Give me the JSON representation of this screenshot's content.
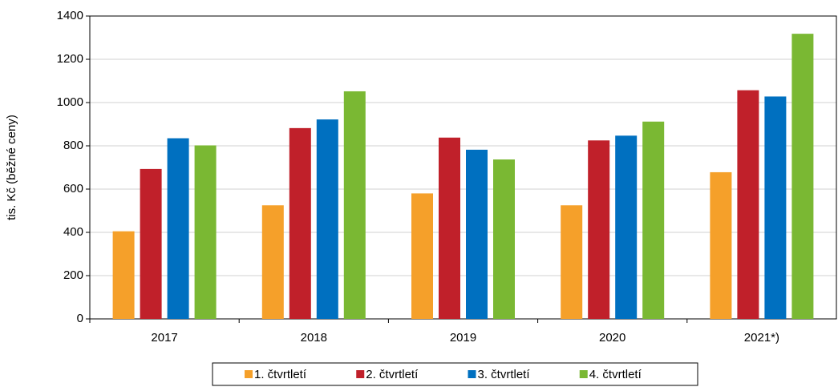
{
  "chart_data": {
    "type": "bar",
    "y_label": "tis. Kč (běžné ceny)",
    "categories": [
      "2017",
      "2018",
      "2019",
      "2020",
      "2021*)"
    ],
    "series": [
      {
        "name": "1. čtvrtletí",
        "color": "#f5a02a",
        "values": [
          405,
          525,
          580,
          525,
          678
        ]
      },
      {
        "name": "2. čtvrtletí",
        "color": "#c0202a",
        "values": [
          693,
          882,
          838,
          825,
          1057
        ]
      },
      {
        "name": "3. čtvrtletí",
        "color": "#0070c0",
        "values": [
          835,
          922,
          782,
          847,
          1028
        ]
      },
      {
        "name": "4. čtvrtletí",
        "color": "#7ab833",
        "values": [
          802,
          1052,
          737,
          912,
          1318
        ]
      }
    ],
    "ylim": [
      0,
      1400
    ],
    "yticks": [
      0,
      200,
      400,
      600,
      800,
      1000,
      1200,
      1400
    ],
    "grid": true,
    "legend": "bottom"
  }
}
